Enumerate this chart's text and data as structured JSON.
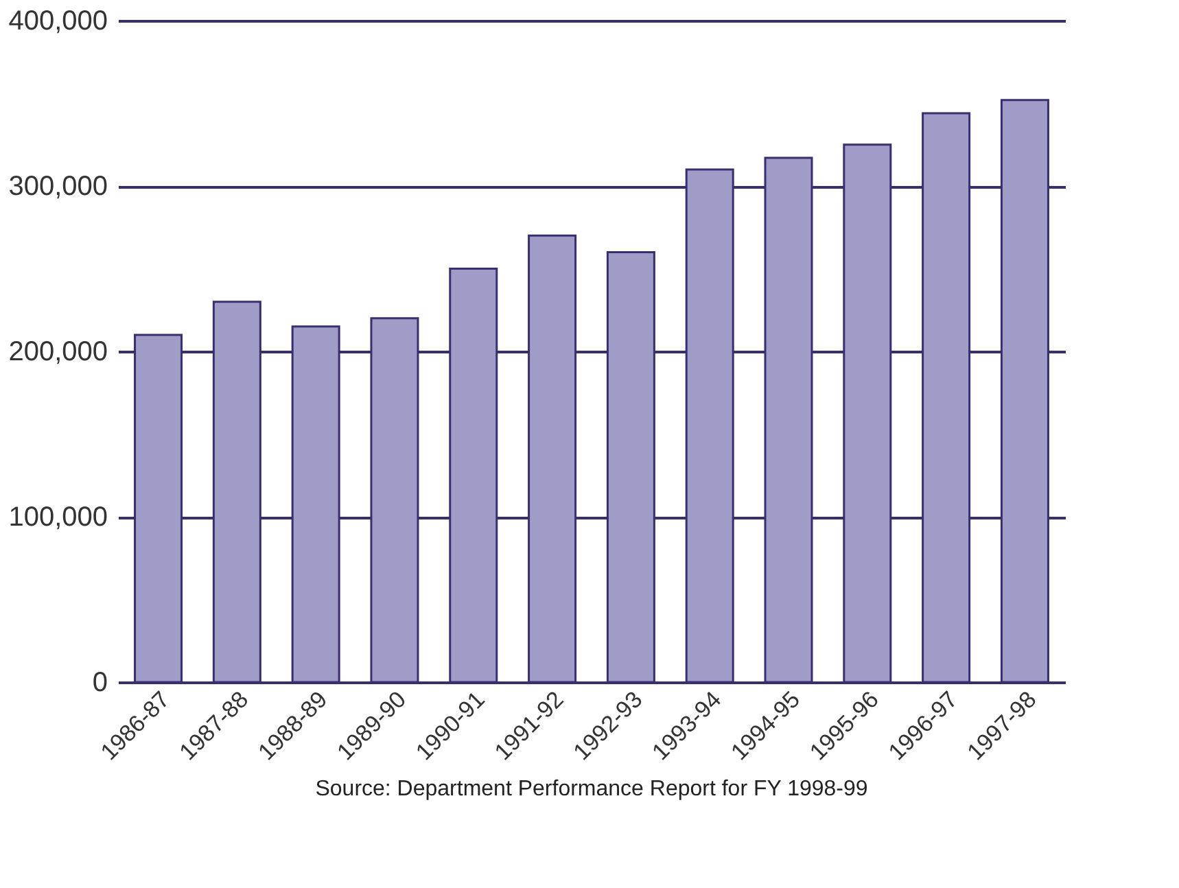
{
  "chart_data": {
    "type": "bar",
    "categories": [
      "1986-87",
      "1987-88",
      "1988-89",
      "1989-90",
      "1990-91",
      "1991-92",
      "1992-93",
      "1993-94",
      "1994-95",
      "1995-96",
      "1996-97",
      "1997-98"
    ],
    "values": [
      210000,
      230000,
      215000,
      220000,
      250000,
      270000,
      260000,
      310000,
      317000,
      325000,
      344000,
      352000
    ],
    "color": "#a09cc8",
    "ylim": [
      0,
      400000
    ],
    "yticks": [
      0,
      {
        "value": 100000,
        "label": "100,000"
      },
      {
        "value": 200000,
        "label": "200,000"
      },
      {
        "value": 300000,
        "label": "300,000"
      },
      {
        "value": 400000,
        "label": "400,000"
      }
    ],
    "grid": "y",
    "annotations": [
      "Source: Department Performance Report for FY 1998-99"
    ]
  }
}
